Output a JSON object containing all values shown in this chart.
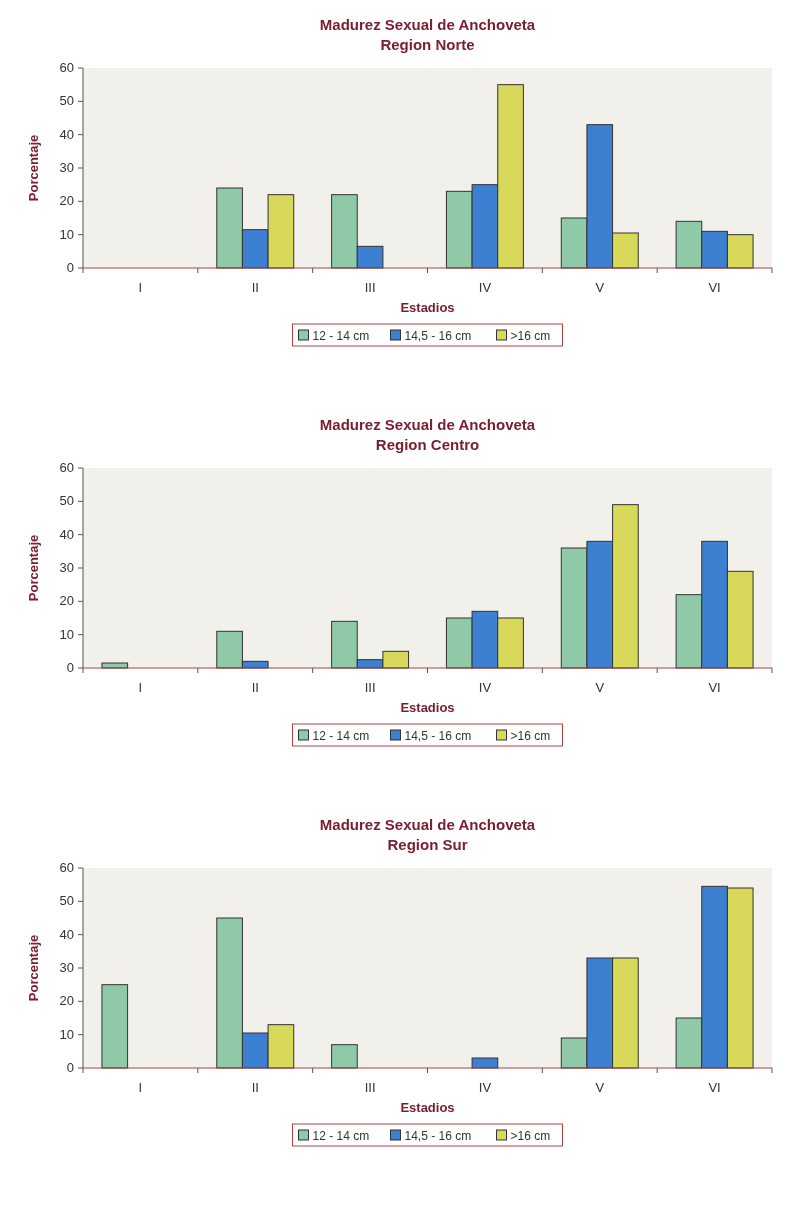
{
  "chart_data": [
    {
      "type": "bar",
      "title": "Madurez Sexual de Anchoveta",
      "subtitle": "Region Norte",
      "xlabel": "Estadios",
      "ylabel": "Porcentaje",
      "categories": [
        "I",
        "II",
        "III",
        "IV",
        "V",
        "VI"
      ],
      "ylim": [
        0,
        60
      ],
      "yticks": [
        0,
        10,
        20,
        30,
        40,
        50,
        60
      ],
      "legend": "bottom",
      "grid": false,
      "series": [
        {
          "name": "12 - 14 cm",
          "color": "#8fc9a8",
          "values": [
            0,
            24,
            22,
            23,
            15,
            14
          ]
        },
        {
          "name": "14,5 - 16 cm",
          "color": "#3d7fd0",
          "values": [
            0,
            11.5,
            6.5,
            25,
            43,
            11
          ]
        },
        {
          "name": ">16 cm",
          "color": "#d8d85a",
          "values": [
            0,
            22,
            0,
            55,
            10.5,
            10
          ]
        }
      ]
    },
    {
      "type": "bar",
      "title": "Madurez Sexual de Anchoveta",
      "subtitle": "Region Centro",
      "xlabel": "Estadios",
      "ylabel": "Porcentaje",
      "categories": [
        "I",
        "II",
        "III",
        "IV",
        "V",
        "VI"
      ],
      "ylim": [
        0,
        60
      ],
      "yticks": [
        0,
        10,
        20,
        30,
        40,
        50,
        60
      ],
      "legend": "bottom",
      "grid": false,
      "series": [
        {
          "name": "12 - 14 cm",
          "color": "#8fc9a8",
          "values": [
            1.5,
            11,
            14,
            15,
            36,
            22
          ]
        },
        {
          "name": "14,5 - 16 cm",
          "color": "#3d7fd0",
          "values": [
            0,
            2,
            2.5,
            17,
            38,
            38
          ]
        },
        {
          "name": ">16 cm",
          "color": "#d8d85a",
          "values": [
            0,
            0,
            5,
            15,
            49,
            29
          ]
        }
      ]
    },
    {
      "type": "bar",
      "title": "Madurez Sexual de Anchoveta",
      "subtitle": "Region Sur",
      "xlabel": "Estadios",
      "ylabel": "Porcentaje",
      "categories": [
        "I",
        "II",
        "III",
        "IV",
        "V",
        "VI"
      ],
      "ylim": [
        0,
        60
      ],
      "yticks": [
        0,
        10,
        20,
        30,
        40,
        50,
        60
      ],
      "legend": "bottom",
      "grid": false,
      "series": [
        {
          "name": "12 - 14 cm",
          "color": "#8fc9a8",
          "values": [
            25,
            45,
            7,
            0,
            9,
            15
          ]
        },
        {
          "name": "14,5 - 16 cm",
          "color": "#3d7fd0",
          "values": [
            0,
            10.5,
            0,
            3,
            33,
            54.5
          ]
        },
        {
          "name": ">16 cm",
          "color": "#d8d85a",
          "values": [
            0,
            13,
            0,
            0,
            33,
            54
          ]
        }
      ]
    }
  ]
}
